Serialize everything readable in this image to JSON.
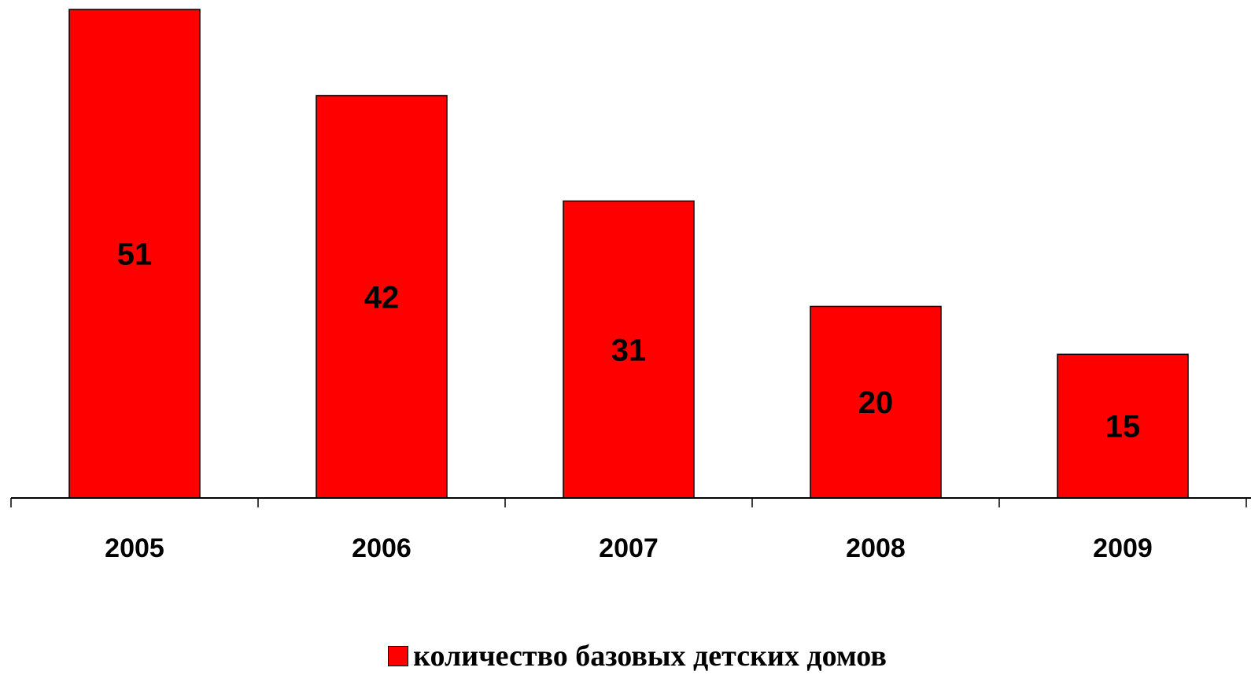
{
  "chart_data": {
    "type": "bar",
    "categories": [
      "2005",
      "2006",
      "2007",
      "2008",
      "2009"
    ],
    "series": [
      {
        "name": "количество базовых детских домов",
        "values": [
          51,
          42,
          31,
          20,
          15
        ],
        "color": "#ff0000"
      }
    ],
    "data_labels": [
      "51",
      "42",
      "31",
      "20",
      "15"
    ],
    "ylim": [
      0,
      51
    ],
    "grid": false,
    "legend_position": "bottom"
  }
}
